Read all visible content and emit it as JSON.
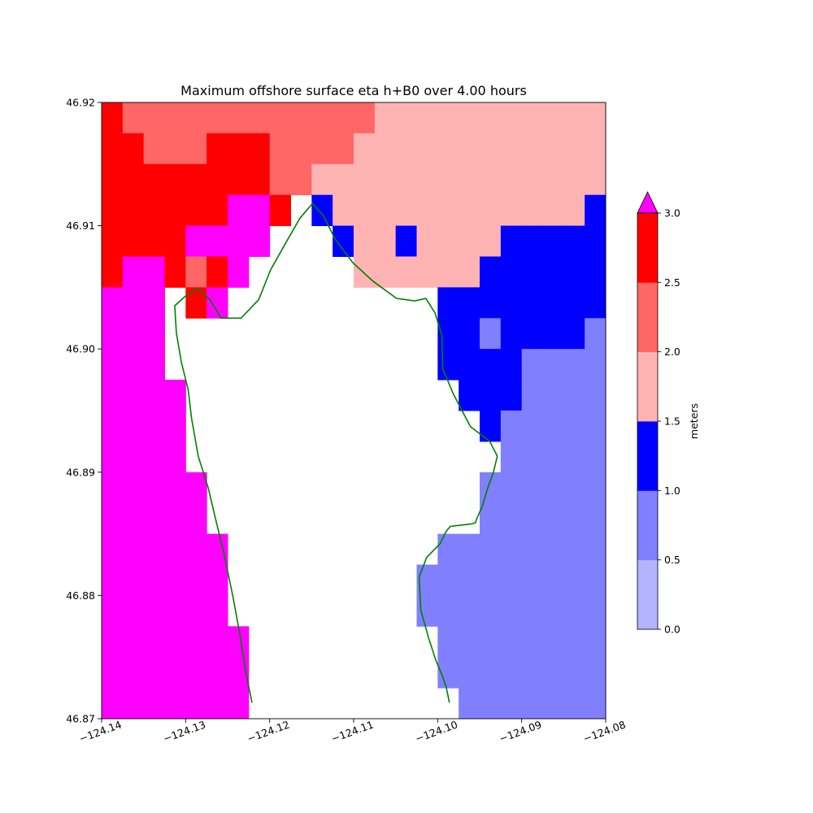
{
  "chart_data": {
    "type": "heatmap",
    "title": "Maximum offshore surface eta h+B0 over 4.00 hours",
    "xlabel": "",
    "ylabel": "",
    "xlim": [
      -124.14,
      -124.08
    ],
    "ylim": [
      46.87,
      46.92
    ],
    "x_ticks": [
      -124.14,
      -124.13,
      -124.12,
      -124.11,
      -124.1,
      -124.09,
      -124.08
    ],
    "x_tick_labels": [
      "−124.14",
      "−124.13",
      "−124.12",
      "−124.11",
      "−124.10",
      "−124.09",
      "−124.08"
    ],
    "y_ticks": [
      46.87,
      46.88,
      46.89,
      46.9,
      46.91,
      46.92
    ],
    "y_tick_labels": [
      "46.87",
      "46.88",
      "46.89",
      "46.90",
      "46.91",
      "46.92"
    ],
    "grid": false,
    "legend": "none",
    "cell_size_deg": 0.0025,
    "grid_origin": {
      "lon": -124.14,
      "lat": 46.92
    },
    "value_classes": [
      {
        "class": 0,
        "range": "no data",
        "color": "#ffffff"
      },
      {
        "class": 1,
        "range": [
          0.5,
          1.0
        ],
        "color": "#8080ff"
      },
      {
        "class": 2,
        "range": [
          1.0,
          1.5
        ],
        "color": "#0000ff"
      },
      {
        "class": 3,
        "range": [
          1.5,
          2.0
        ],
        "color": "#ffb3b3"
      },
      {
        "class": 4,
        "range": [
          2.0,
          2.5
        ],
        "color": "#ff6666"
      },
      {
        "class": 5,
        "range": [
          2.5,
          3.0
        ],
        "color": "#ff0000"
      },
      {
        "class": 6,
        "range": "> 3.0",
        "color": "#ff00ff"
      }
    ],
    "cells_rows_north_to_south": [
      [
        5,
        4,
        4,
        4,
        4,
        4,
        4,
        4,
        4,
        4,
        4,
        4,
        4,
        3,
        3,
        3,
        3,
        3,
        3,
        3,
        3,
        3,
        3,
        3
      ],
      [
        5,
        5,
        4,
        4,
        4,
        5,
        5,
        5,
        4,
        4,
        4,
        4,
        3,
        3,
        3,
        3,
        3,
        3,
        3,
        3,
        3,
        3,
        3,
        3
      ],
      [
        5,
        5,
        5,
        5,
        5,
        5,
        5,
        5,
        4,
        4,
        3,
        3,
        3,
        3,
        3,
        3,
        3,
        3,
        3,
        3,
        3,
        3,
        3,
        3
      ],
      [
        5,
        5,
        5,
        5,
        5,
        5,
        6,
        6,
        5,
        0,
        2,
        3,
        3,
        3,
        3,
        3,
        3,
        3,
        3,
        3,
        3,
        3,
        3,
        2
      ],
      [
        5,
        5,
        5,
        5,
        6,
        6,
        6,
        6,
        0,
        0,
        0,
        2,
        3,
        3,
        2,
        3,
        3,
        3,
        3,
        2,
        2,
        2,
        2,
        2
      ],
      [
        5,
        6,
        6,
        5,
        4,
        5,
        6,
        0,
        0,
        0,
        0,
        0,
        3,
        3,
        3,
        3,
        3,
        3,
        2,
        2,
        2,
        2,
        2,
        2
      ],
      [
        6,
        6,
        6,
        0,
        5,
        6,
        0,
        0,
        0,
        0,
        0,
        0,
        0,
        0,
        0,
        0,
        2,
        2,
        2,
        2,
        2,
        2,
        2,
        2
      ],
      [
        6,
        6,
        6,
        0,
        0,
        0,
        0,
        0,
        0,
        0,
        0,
        0,
        0,
        0,
        0,
        0,
        2,
        2,
        1,
        2,
        2,
        2,
        2,
        1
      ],
      [
        6,
        6,
        6,
        0,
        0,
        0,
        0,
        0,
        0,
        0,
        0,
        0,
        0,
        0,
        0,
        0,
        2,
        2,
        2,
        2,
        1,
        1,
        1,
        1
      ],
      [
        6,
        6,
        6,
        6,
        0,
        0,
        0,
        0,
        0,
        0,
        0,
        0,
        0,
        0,
        0,
        0,
        0,
        2,
        2,
        2,
        1,
        1,
        1,
        1
      ],
      [
        6,
        6,
        6,
        6,
        0,
        0,
        0,
        0,
        0,
        0,
        0,
        0,
        0,
        0,
        0,
        0,
        0,
        0,
        2,
        1,
        1,
        1,
        1,
        1
      ],
      [
        6,
        6,
        6,
        6,
        0,
        0,
        0,
        0,
        0,
        0,
        0,
        0,
        0,
        0,
        0,
        0,
        0,
        0,
        0,
        1,
        1,
        1,
        1,
        1
      ],
      [
        6,
        6,
        6,
        6,
        6,
        0,
        0,
        0,
        0,
        0,
        0,
        0,
        0,
        0,
        0,
        0,
        0,
        0,
        1,
        1,
        1,
        1,
        1,
        1
      ],
      [
        6,
        6,
        6,
        6,
        6,
        0,
        0,
        0,
        0,
        0,
        0,
        0,
        0,
        0,
        0,
        0,
        0,
        0,
        1,
        1,
        1,
        1,
        1,
        1
      ],
      [
        6,
        6,
        6,
        6,
        6,
        6,
        0,
        0,
        0,
        0,
        0,
        0,
        0,
        0,
        0,
        0,
        1,
        1,
        1,
        1,
        1,
        1,
        1,
        1
      ],
      [
        6,
        6,
        6,
        6,
        6,
        6,
        0,
        0,
        0,
        0,
        0,
        0,
        0,
        0,
        0,
        1,
        1,
        1,
        1,
        1,
        1,
        1,
        1,
        1
      ],
      [
        6,
        6,
        6,
        6,
        6,
        6,
        0,
        0,
        0,
        0,
        0,
        0,
        0,
        0,
        0,
        1,
        1,
        1,
        1,
        1,
        1,
        1,
        1,
        1
      ],
      [
        6,
        6,
        6,
        6,
        6,
        6,
        6,
        0,
        0,
        0,
        0,
        0,
        0,
        0,
        0,
        0,
        1,
        1,
        1,
        1,
        1,
        1,
        1,
        1
      ],
      [
        6,
        6,
        6,
        6,
        6,
        6,
        6,
        0,
        0,
        0,
        0,
        0,
        0,
        0,
        0,
        0,
        1,
        1,
        1,
        1,
        1,
        1,
        1,
        1
      ],
      [
        6,
        6,
        6,
        6,
        6,
        6,
        6,
        0,
        0,
        0,
        0,
        0,
        0,
        0,
        0,
        0,
        0,
        1,
        1,
        1,
        1,
        1,
        1,
        1
      ]
    ],
    "shoreline": {
      "color": "#008000",
      "points": [
        [
          -124.1221,
          46.8713
        ],
        [
          -124.1229,
          46.874
        ],
        [
          -124.1235,
          46.8767
        ],
        [
          -124.1244,
          46.88
        ],
        [
          -124.1255,
          46.8836
        ],
        [
          -124.1264,
          46.8861
        ],
        [
          -124.1273,
          46.8887
        ],
        [
          -124.1285,
          46.8913
        ],
        [
          -124.1293,
          46.8944
        ],
        [
          -124.1297,
          46.8967
        ],
        [
          -124.1305,
          46.8989
        ],
        [
          -124.1311,
          46.9013
        ],
        [
          -124.1313,
          46.9035
        ],
        [
          -124.13,
          46.9043
        ],
        [
          -124.1286,
          46.9049
        ],
        [
          -124.1271,
          46.904
        ],
        [
          -124.1258,
          46.9025
        ],
        [
          -124.1234,
          46.9025
        ],
        [
          -124.1213,
          46.904
        ],
        [
          -124.1199,
          46.9064
        ],
        [
          -124.118,
          46.9087
        ],
        [
          -124.1164,
          46.9106
        ],
        [
          -124.1149,
          46.9118
        ],
        [
          -124.1136,
          46.9108
        ],
        [
          -124.1122,
          46.9089
        ],
        [
          -124.1101,
          46.907
        ],
        [
          -124.1077,
          46.9055
        ],
        [
          -124.1049,
          46.9041
        ],
        [
          -124.1027,
          46.9039
        ],
        [
          -124.1014,
          46.9041
        ],
        [
          -124.1003,
          46.9029
        ],
        [
          -124.0995,
          46.9011
        ],
        [
          -124.0994,
          46.8984
        ],
        [
          -124.0981,
          46.8963
        ],
        [
          -124.0961,
          46.8937
        ],
        [
          -124.0938,
          46.8925
        ],
        [
          -124.0929,
          46.8913
        ],
        [
          -124.0934,
          46.8899
        ],
        [
          -124.094,
          46.8888
        ],
        [
          -124.0947,
          46.8872
        ],
        [
          -124.0953,
          46.8863
        ],
        [
          -124.0955,
          46.8859
        ],
        [
          -124.096,
          46.8858
        ],
        [
          -124.0985,
          46.8856
        ],
        [
          -124.099,
          46.8852
        ],
        [
          -124.0997,
          46.8842
        ],
        [
          -124.1013,
          46.8831
        ],
        [
          -124.1022,
          46.8815
        ],
        [
          -124.102,
          46.8788
        ],
        [
          -124.1011,
          46.8766
        ],
        [
          -124.1002,
          46.8747
        ],
        [
          -124.0994,
          46.8734
        ],
        [
          -124.099,
          46.8726
        ],
        [
          -124.0986,
          46.8713
        ]
      ]
    }
  },
  "colorbar": {
    "label": "meters",
    "tick_labels": [
      "0.0",
      "0.5",
      "1.0",
      "1.5",
      "2.0",
      "2.5",
      "3.0"
    ],
    "bands": [
      {
        "from": 0.0,
        "to": 0.5,
        "color": "#b3b3ff"
      },
      {
        "from": 0.5,
        "to": 1.0,
        "color": "#8080ff"
      },
      {
        "from": 1.0,
        "to": 1.5,
        "color": "#0000ff"
      },
      {
        "from": 1.5,
        "to": 2.0,
        "color": "#ffb3b3"
      },
      {
        "from": 2.0,
        "to": 2.5,
        "color": "#ff6666"
      },
      {
        "from": 2.5,
        "to": 3.0,
        "color": "#ff0000"
      }
    ],
    "extend_max_color": "#ff00ff"
  }
}
